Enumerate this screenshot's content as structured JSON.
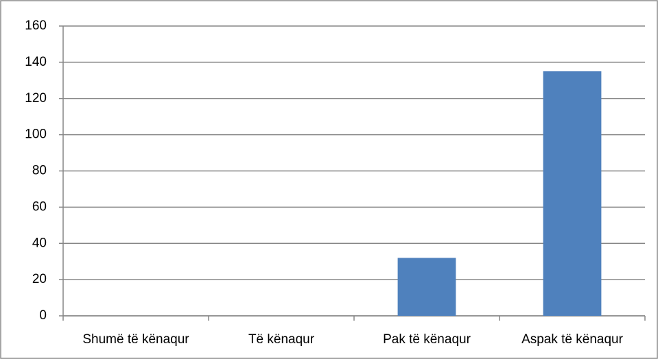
{
  "chart_data": {
    "type": "bar",
    "categories": [
      "Shumë të kënaqur",
      "Të kënaqur",
      "Pak të kënaqur",
      "Aspak të kënaqur"
    ],
    "values": [
      0,
      0,
      32,
      135
    ],
    "color": "#4f81bd",
    "ylim": [
      0,
      160
    ],
    "yticks": [
      0,
      20,
      40,
      60,
      80,
      100,
      120,
      140,
      160
    ],
    "grid": true
  }
}
